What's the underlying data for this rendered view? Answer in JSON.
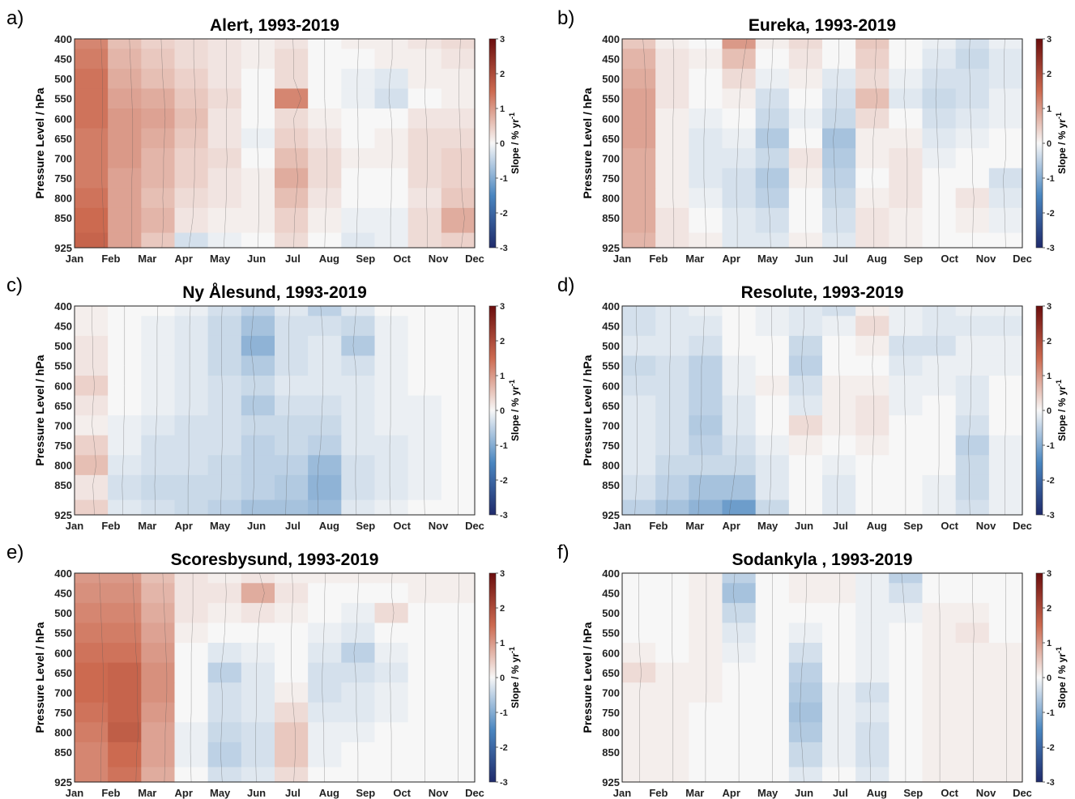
{
  "figure": {
    "months": [
      "Jan",
      "Feb",
      "Mar",
      "Apr",
      "May",
      "Jun",
      "Jul",
      "Aug",
      "Sep",
      "Oct",
      "Nov",
      "Dec"
    ],
    "levels": [
      400,
      450,
      500,
      550,
      600,
      650,
      700,
      750,
      800,
      850,
      925
    ],
    "ylabel": "Pressure Level / hPa",
    "colorbar": {
      "label_main": "Slope / % yr",
      "label_sup": "-1",
      "ticks": [
        3,
        2,
        1,
        0,
        -1,
        -2,
        -3
      ],
      "min": -3,
      "max": 3,
      "colors": {
        "negative": "#1f2a6b",
        "neg_mid": "#4a86c0",
        "zero": "#f7f7f7",
        "pos_mid": "#cc6a50",
        "positive": "#6b0d0d"
      }
    }
  },
  "chart_data": [
    {
      "letter": "a)",
      "title": "Alert, 1993-2019",
      "type": "heatmap",
      "x": [
        "Jan",
        "Feb",
        "Mar",
        "Apr",
        "May",
        "Jun",
        "Jul",
        "Aug",
        "Sep",
        "Oct",
        "Nov",
        "Dec"
      ],
      "y": [
        400,
        450,
        500,
        550,
        600,
        650,
        700,
        750,
        800,
        850,
        925
      ],
      "values": [
        [
          1.2,
          0.6,
          0.4,
          0.3,
          0.2,
          0.1,
          0.2,
          0.0,
          0.1,
          0.1,
          0.2,
          0.3
        ],
        [
          1.3,
          0.7,
          0.5,
          0.3,
          0.2,
          0.1,
          0.3,
          0.0,
          0.0,
          0.1,
          0.1,
          0.2
        ],
        [
          1.4,
          0.8,
          0.6,
          0.4,
          0.2,
          0.0,
          0.3,
          0.0,
          -0.1,
          -0.2,
          0.1,
          0.1
        ],
        [
          1.4,
          0.9,
          0.8,
          0.5,
          0.3,
          0.0,
          1.2,
          0.0,
          -0.1,
          -0.3,
          0.0,
          0.1
        ],
        [
          1.4,
          1.0,
          0.9,
          0.6,
          0.2,
          0.0,
          0.3,
          0.1,
          0.0,
          0.0,
          0.2,
          0.2
        ],
        [
          1.3,
          1.0,
          0.8,
          0.5,
          0.2,
          -0.1,
          0.4,
          0.2,
          0.0,
          0.1,
          0.3,
          0.3
        ],
        [
          1.3,
          1.0,
          0.7,
          0.4,
          0.3,
          0.0,
          0.6,
          0.3,
          0.1,
          0.1,
          0.3,
          0.4
        ],
        [
          1.3,
          0.9,
          0.7,
          0.4,
          0.2,
          0.1,
          0.8,
          0.3,
          0.0,
          0.0,
          0.3,
          0.4
        ],
        [
          1.4,
          0.9,
          0.6,
          0.3,
          0.2,
          0.1,
          0.6,
          0.2,
          0.0,
          0.0,
          0.2,
          0.5
        ],
        [
          1.5,
          0.9,
          0.7,
          0.2,
          0.1,
          0.1,
          0.4,
          0.1,
          -0.1,
          -0.1,
          0.3,
          0.8
        ],
        [
          1.6,
          0.9,
          0.5,
          -0.3,
          -0.1,
          0.0,
          0.3,
          0.0,
          -0.2,
          -0.1,
          0.3,
          0.4
        ]
      ],
      "significance_shown": "dotted regions"
    },
    {
      "letter": "b)",
      "title": "Eureka, 1993-2019",
      "type": "heatmap",
      "x": [
        "Jan",
        "Feb",
        "Mar",
        "Apr",
        "May",
        "Jun",
        "Jul",
        "Aug",
        "Sep",
        "Oct",
        "Nov",
        "Dec"
      ],
      "y": [
        400,
        450,
        500,
        550,
        600,
        650,
        700,
        750,
        800,
        850,
        925
      ],
      "values": [
        [
          0.5,
          0.1,
          0.0,
          1.0,
          0.1,
          0.3,
          0.0,
          0.5,
          0.0,
          -0.1,
          -0.3,
          -0.1
        ],
        [
          0.7,
          0.2,
          0.1,
          0.6,
          0.0,
          0.2,
          0.0,
          0.4,
          0.0,
          -0.2,
          -0.4,
          -0.2
        ],
        [
          0.8,
          0.2,
          0.0,
          0.3,
          -0.1,
          0.1,
          -0.2,
          0.3,
          -0.1,
          -0.3,
          -0.3,
          -0.2
        ],
        [
          0.9,
          0.2,
          0.0,
          0.1,
          -0.3,
          0.0,
          -0.3,
          0.6,
          -0.2,
          -0.4,
          -0.3,
          -0.1
        ],
        [
          0.9,
          0.1,
          -0.1,
          0.0,
          -0.4,
          -0.1,
          -0.4,
          0.3,
          0.0,
          -0.3,
          -0.2,
          -0.1
        ],
        [
          0.9,
          0.1,
          -0.2,
          -0.1,
          -0.6,
          0.0,
          -0.7,
          0.1,
          0.1,
          -0.2,
          -0.1,
          0.0
        ],
        [
          0.8,
          0.1,
          -0.2,
          -0.2,
          -0.4,
          0.2,
          -0.6,
          0.1,
          0.2,
          -0.1,
          0.0,
          0.0
        ],
        [
          0.8,
          0.1,
          -0.2,
          -0.3,
          -0.6,
          0.1,
          -0.5,
          0.0,
          0.2,
          0.0,
          0.0,
          -0.3
        ],
        [
          0.8,
          0.1,
          -0.1,
          -0.3,
          -0.5,
          0.0,
          -0.4,
          0.1,
          0.2,
          0.0,
          0.2,
          -0.2
        ],
        [
          0.8,
          0.2,
          0.0,
          -0.2,
          -0.3,
          0.0,
          -0.3,
          0.2,
          0.1,
          0.0,
          0.1,
          -0.1
        ],
        [
          0.7,
          0.2,
          0.1,
          -0.2,
          -0.2,
          0.1,
          -0.2,
          0.2,
          0.1,
          0.0,
          0.0,
          0.0
        ]
      ],
      "significance_shown": "dotted regions"
    },
    {
      "letter": "c)",
      "title": "Ny Ålesund, 1993-2019",
      "type": "heatmap",
      "x": [
        "Jan",
        "Feb",
        "Mar",
        "Apr",
        "May",
        "Jun",
        "Jul",
        "Aug",
        "Sep",
        "Oct",
        "Nov",
        "Dec"
      ],
      "y": [
        400,
        450,
        500,
        550,
        600,
        650,
        700,
        750,
        800,
        850,
        925
      ],
      "values": [
        [
          0.1,
          0.0,
          0.0,
          -0.1,
          -0.3,
          -0.5,
          -0.2,
          -0.5,
          -0.2,
          0.0,
          0.0,
          0.0
        ],
        [
          0.1,
          0.0,
          -0.1,
          -0.2,
          -0.4,
          -0.7,
          -0.3,
          -0.3,
          -0.4,
          -0.1,
          0.0,
          0.0
        ],
        [
          0.2,
          0.0,
          -0.1,
          -0.2,
          -0.4,
          -0.9,
          -0.3,
          -0.2,
          -0.6,
          -0.1,
          0.0,
          0.0
        ],
        [
          0.2,
          0.0,
          -0.1,
          -0.2,
          -0.4,
          -0.6,
          -0.3,
          -0.2,
          -0.3,
          -0.1,
          0.0,
          0.0
        ],
        [
          0.4,
          0.0,
          -0.1,
          -0.2,
          -0.3,
          -0.4,
          -0.2,
          -0.2,
          -0.2,
          -0.1,
          0.0,
          0.0
        ],
        [
          0.2,
          0.0,
          -0.1,
          -0.2,
          -0.3,
          -0.6,
          -0.3,
          -0.3,
          -0.2,
          -0.1,
          -0.1,
          0.0
        ],
        [
          0.1,
          -0.1,
          -0.2,
          -0.3,
          -0.3,
          -0.4,
          -0.4,
          -0.4,
          -0.2,
          -0.1,
          -0.1,
          0.0
        ],
        [
          0.4,
          -0.1,
          -0.3,
          -0.3,
          -0.3,
          -0.5,
          -0.4,
          -0.5,
          -0.2,
          -0.2,
          -0.1,
          0.0
        ],
        [
          0.6,
          -0.2,
          -0.3,
          -0.3,
          -0.4,
          -0.5,
          -0.5,
          -0.8,
          -0.3,
          -0.2,
          -0.1,
          0.0
        ],
        [
          0.2,
          -0.3,
          -0.4,
          -0.4,
          -0.4,
          -0.5,
          -0.6,
          -0.9,
          -0.3,
          -0.2,
          -0.1,
          0.0
        ],
        [
          0.4,
          -0.2,
          -0.3,
          -0.4,
          -0.5,
          -0.7,
          -0.7,
          -0.8,
          -0.2,
          -0.1,
          0.0,
          0.0
        ]
      ],
      "significance_shown": "dotted regions"
    },
    {
      "letter": "d)",
      "title": "Resolute, 1993-2019",
      "type": "heatmap",
      "x": [
        "Jan",
        "Feb",
        "Mar",
        "Apr",
        "May",
        "Jun",
        "Jul",
        "Aug",
        "Sep",
        "Oct",
        "Nov",
        "Dec"
      ],
      "y": [
        400,
        450,
        500,
        550,
        600,
        650,
        700,
        750,
        800,
        850,
        925
      ],
      "values": [
        [
          -0.3,
          -0.2,
          -0.1,
          0.0,
          -0.1,
          -0.2,
          -0.3,
          0.1,
          -0.1,
          -0.2,
          -0.1,
          -0.1
        ],
        [
          -0.3,
          -0.2,
          -0.2,
          0.0,
          -0.1,
          -0.2,
          -0.1,
          0.3,
          -0.1,
          -0.2,
          -0.2,
          -0.2
        ],
        [
          -0.2,
          -0.2,
          -0.3,
          0.0,
          0.0,
          -0.4,
          0.0,
          0.1,
          -0.3,
          -0.3,
          -0.1,
          -0.1
        ],
        [
          -0.4,
          -0.3,
          -0.5,
          -0.1,
          0.0,
          -0.5,
          0.0,
          0.0,
          -0.2,
          -0.1,
          -0.1,
          -0.1
        ],
        [
          -0.3,
          -0.3,
          -0.5,
          -0.1,
          0.1,
          -0.3,
          0.1,
          0.1,
          -0.1,
          -0.1,
          -0.2,
          0.0
        ],
        [
          -0.2,
          -0.3,
          -0.5,
          -0.2,
          0.0,
          -0.2,
          0.1,
          0.2,
          -0.1,
          0.0,
          -0.2,
          0.0
        ],
        [
          -0.2,
          -0.3,
          -0.6,
          -0.2,
          0.0,
          0.3,
          0.1,
          0.2,
          0.0,
          0.0,
          -0.3,
          0.0
        ],
        [
          -0.2,
          -0.3,
          -0.5,
          -0.3,
          -0.1,
          0.1,
          0.0,
          0.1,
          0.0,
          0.0,
          -0.5,
          -0.1
        ],
        [
          -0.2,
          -0.4,
          -0.4,
          -0.4,
          -0.2,
          0.0,
          -0.1,
          0.0,
          0.0,
          0.0,
          -0.4,
          -0.1
        ],
        [
          -0.3,
          -0.5,
          -0.7,
          -0.7,
          -0.2,
          0.0,
          -0.2,
          0.0,
          0.0,
          -0.1,
          -0.4,
          -0.1
        ],
        [
          -0.5,
          -0.7,
          -0.9,
          -1.2,
          -0.4,
          0.0,
          -0.2,
          0.0,
          0.0,
          -0.1,
          -0.3,
          -0.1
        ]
      ],
      "significance_shown": "dotted regions"
    },
    {
      "letter": "e)",
      "title": "Scoresbysund, 1993-2019",
      "type": "heatmap",
      "x": [
        "Jan",
        "Feb",
        "Mar",
        "Apr",
        "May",
        "Jun",
        "Jul",
        "Aug",
        "Sep",
        "Oct",
        "Nov",
        "Dec"
      ],
      "y": [
        400,
        450,
        500,
        550,
        600,
        650,
        700,
        750,
        800,
        850,
        925
      ],
      "values": [
        [
          1.0,
          1.0,
          0.6,
          0.2,
          0.1,
          0.2,
          0.1,
          0.1,
          0.1,
          0.1,
          0.1,
          0.1
        ],
        [
          1.1,
          1.1,
          0.7,
          0.2,
          0.2,
          0.8,
          0.2,
          0.0,
          0.0,
          0.0,
          0.1,
          0.1
        ],
        [
          1.2,
          1.2,
          0.8,
          0.2,
          0.1,
          0.2,
          0.1,
          0.0,
          -0.1,
          0.3,
          0.0,
          0.0
        ],
        [
          1.3,
          1.3,
          0.9,
          0.1,
          0.0,
          0.0,
          0.0,
          -0.1,
          -0.2,
          0.0,
          0.0,
          0.0
        ],
        [
          1.4,
          1.4,
          1.0,
          0.0,
          -0.2,
          -0.1,
          0.0,
          -0.2,
          -0.5,
          -0.1,
          0.0,
          0.0
        ],
        [
          1.5,
          1.6,
          1.1,
          0.0,
          -0.5,
          -0.2,
          0.0,
          -0.3,
          -0.3,
          -0.2,
          0.0,
          0.0
        ],
        [
          1.5,
          1.6,
          1.1,
          0.0,
          -0.3,
          -0.2,
          0.1,
          -0.3,
          -0.2,
          -0.1,
          0.0,
          0.0
        ],
        [
          1.4,
          1.6,
          1.0,
          0.0,
          -0.3,
          -0.2,
          0.3,
          -0.2,
          -0.2,
          -0.1,
          0.0,
          0.0
        ],
        [
          1.3,
          1.7,
          0.9,
          -0.1,
          -0.4,
          -0.3,
          0.5,
          -0.1,
          -0.1,
          0.0,
          0.0,
          0.0
        ],
        [
          1.2,
          1.5,
          0.9,
          -0.1,
          -0.5,
          -0.3,
          0.5,
          -0.1,
          0.0,
          0.0,
          0.0,
          0.0
        ],
        [
          1.2,
          1.4,
          0.8,
          0.0,
          -0.3,
          -0.2,
          0.3,
          0.0,
          0.0,
          0.0,
          0.0,
          0.0
        ]
      ],
      "significance_shown": "dotted regions"
    },
    {
      "letter": "f)",
      "title": "Sodankyla , 1993-2019",
      "type": "heatmap",
      "x": [
        "Jan",
        "Feb",
        "Mar",
        "Apr",
        "May",
        "Jun",
        "Jul",
        "Aug",
        "Sep",
        "Oct",
        "Nov",
        "Dec"
      ],
      "y": [
        400,
        450,
        500,
        550,
        600,
        650,
        700,
        750,
        800,
        850,
        925
      ],
      "values": [
        [
          0.0,
          0.0,
          0.1,
          -0.5,
          0.0,
          0.1,
          0.1,
          -0.1,
          -0.5,
          0.0,
          0.0,
          0.0
        ],
        [
          0.0,
          0.0,
          0.1,
          -0.7,
          0.0,
          0.1,
          0.1,
          -0.1,
          -0.3,
          0.0,
          0.0,
          0.0
        ],
        [
          0.0,
          0.0,
          0.1,
          -0.4,
          0.0,
          0.0,
          0.0,
          -0.1,
          -0.1,
          0.1,
          0.1,
          0.0
        ],
        [
          0.0,
          0.0,
          0.1,
          -0.2,
          0.0,
          -0.1,
          0.0,
          -0.1,
          0.0,
          0.1,
          0.2,
          0.0
        ],
        [
          0.1,
          0.0,
          0.1,
          -0.1,
          0.0,
          -0.3,
          0.0,
          -0.1,
          0.0,
          0.1,
          0.1,
          0.1
        ],
        [
          0.3,
          0.1,
          0.1,
          0.0,
          0.0,
          -0.5,
          0.0,
          -0.1,
          0.0,
          0.1,
          0.1,
          0.1
        ],
        [
          0.1,
          0.1,
          0.1,
          0.0,
          0.0,
          -0.6,
          -0.1,
          -0.3,
          0.0,
          0.1,
          0.1,
          0.1
        ],
        [
          0.1,
          0.1,
          0.0,
          0.0,
          0.0,
          -0.7,
          -0.1,
          -0.2,
          0.0,
          0.1,
          0.1,
          0.1
        ],
        [
          0.1,
          0.1,
          0.0,
          0.0,
          0.0,
          -0.6,
          -0.1,
          -0.3,
          0.0,
          0.1,
          0.1,
          0.1
        ],
        [
          0.1,
          0.1,
          0.0,
          0.0,
          0.0,
          -0.4,
          -0.1,
          -0.3,
          0.0,
          0.1,
          0.1,
          0.1
        ],
        [
          0.1,
          0.1,
          0.0,
          0.0,
          0.0,
          -0.2,
          0.0,
          -0.2,
          0.0,
          0.1,
          0.1,
          0.1
        ]
      ],
      "significance_shown": "dotted regions"
    }
  ]
}
